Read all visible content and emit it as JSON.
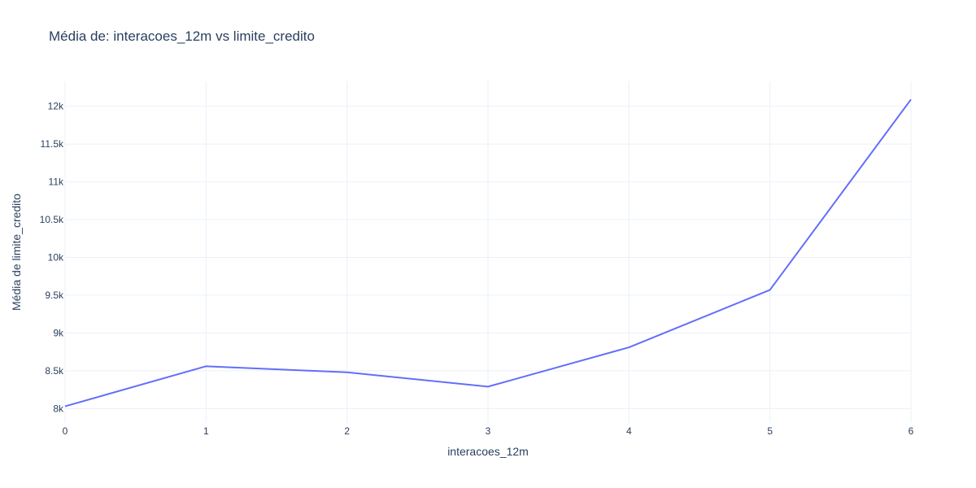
{
  "chart_data": {
    "type": "line",
    "title": "Média de: interacoes_12m vs limite_credito",
    "xlabel": "interacoes_12m",
    "ylabel": "Média de limite_credito",
    "x": [
      0,
      1,
      2,
      3,
      4,
      5,
      6
    ],
    "series": [
      {
        "values": [
          8030,
          8560,
          8480,
          8290,
          8810,
          9570,
          12090
        ]
      }
    ],
    "xlim": [
      0,
      6
    ],
    "ylim": [
      7810,
      12330
    ],
    "x_ticks": [
      0,
      1,
      2,
      3,
      4,
      5,
      6
    ],
    "x_tick_labels": [
      "0",
      "1",
      "2",
      "3",
      "4",
      "5",
      "6"
    ],
    "y_ticks": [
      8000,
      8500,
      9000,
      9500,
      10000,
      10500,
      11000,
      11500,
      12000
    ],
    "y_tick_labels": [
      "8k",
      "8.5k",
      "9k",
      "9.5k",
      "10k",
      "10.5k",
      "11k",
      "11.5k",
      "12k"
    ],
    "grid": true,
    "line_color": "#636efa"
  }
}
